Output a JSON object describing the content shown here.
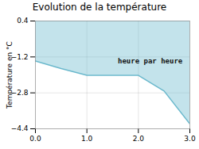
{
  "chart_data": {
    "type": "area",
    "title": "Evolution de la température",
    "ylabel": "Température en °C",
    "x": [
      0,
      0.5,
      1.0,
      2.0,
      2.5,
      3.0
    ],
    "values": [
      -1.38,
      -1.72,
      -2.02,
      -2.02,
      -2.72,
      -4.18
    ],
    "color": "#6ab8cc",
    "xlim": [
      0,
      3
    ],
    "ylim": [
      -4.4,
      0.4
    ],
    "xticks": [
      0,
      1,
      2,
      3
    ],
    "yticks": [
      0.4,
      -1.2,
      -2.8,
      -4.4
    ],
    "grid": true,
    "annotations": [
      {
        "text": "heure par heure",
        "x": 1.6,
        "y": -1.5
      }
    ]
  }
}
